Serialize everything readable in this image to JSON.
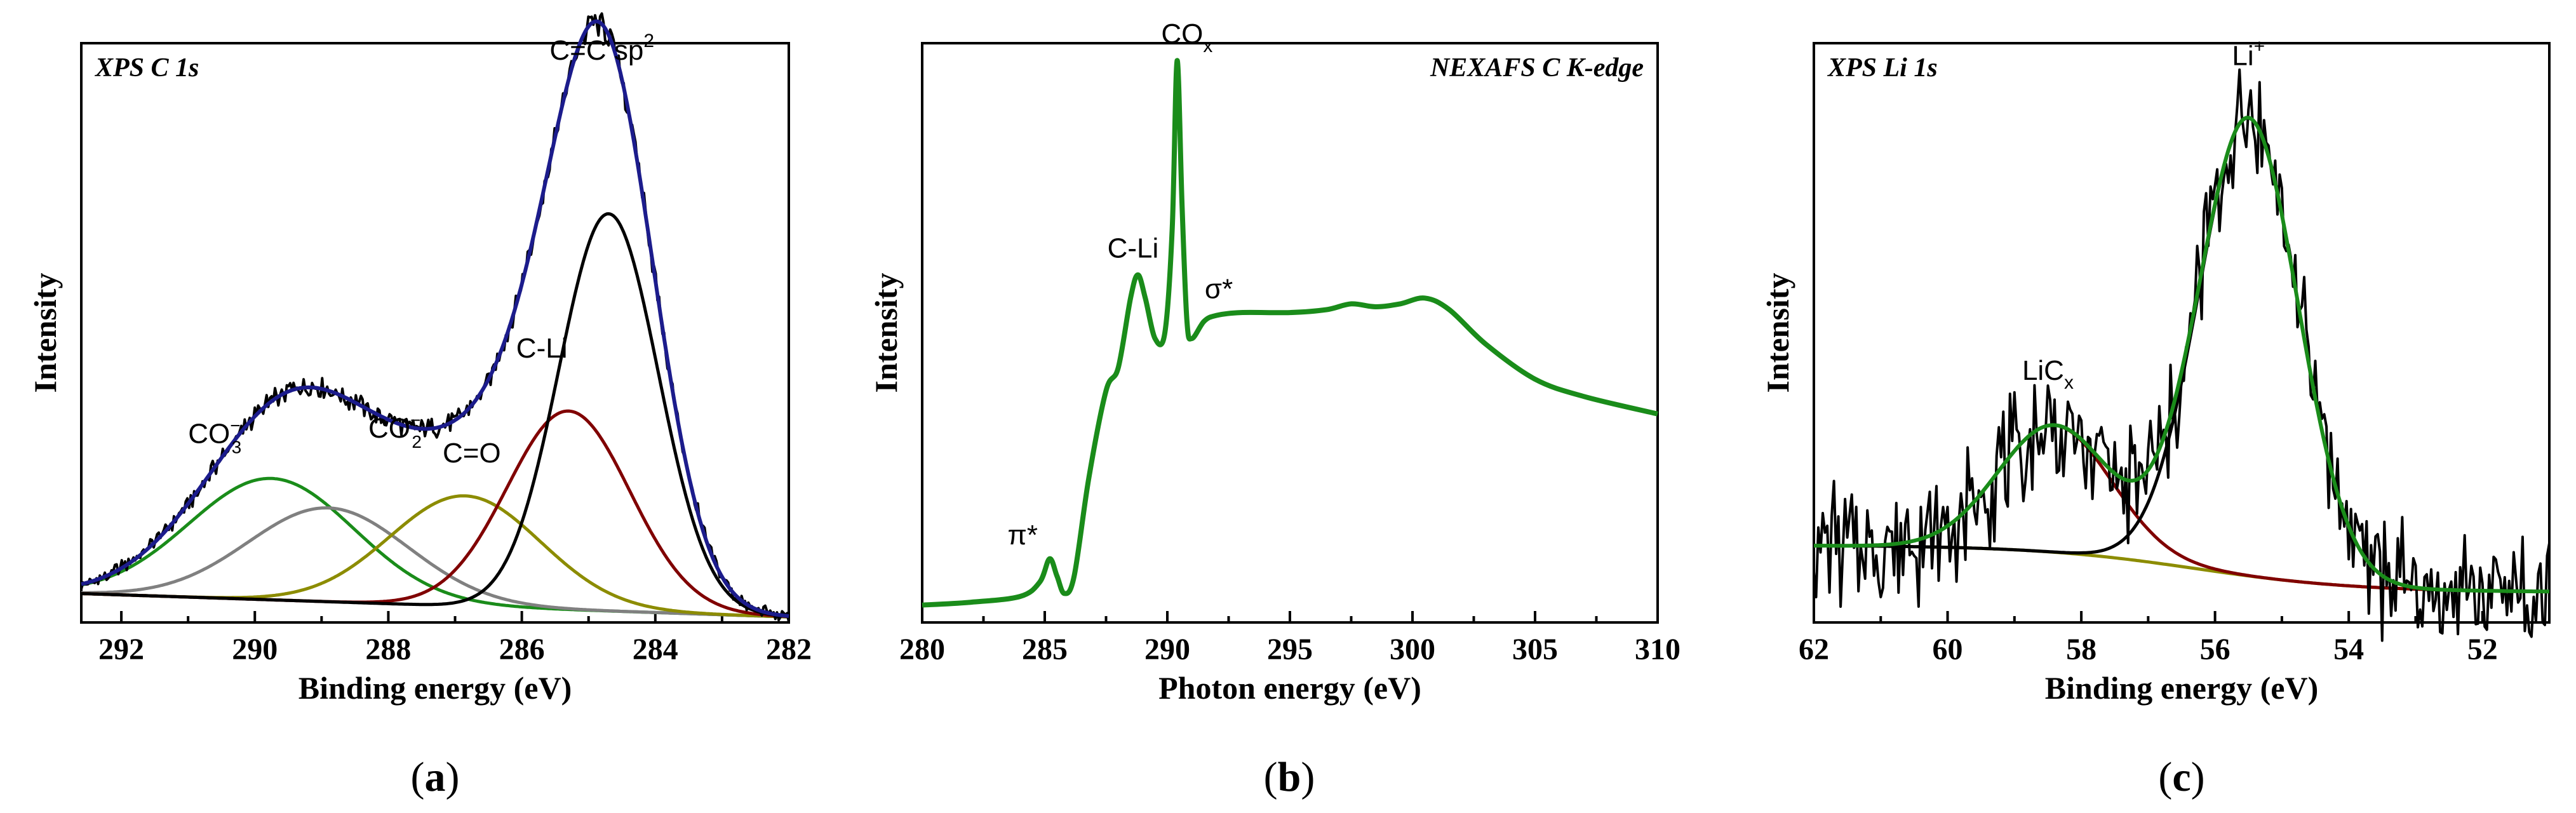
{
  "chart_data": [
    {
      "type": "line",
      "panel": "a",
      "panel_label": "(a)",
      "title": "XPS C 1s",
      "xlabel": "Binding energy (eV)",
      "ylabel": "Intensity",
      "x_reversed": true,
      "xlim": [
        292.6,
        282.0
      ],
      "ylim": [
        0,
        1.05
      ],
      "xticks": [
        292,
        290,
        288,
        286,
        284,
        282
      ],
      "background": 0.0,
      "components": [
        {
          "name": "CO3",
          "center": 289.75,
          "width": 1.75,
          "height": 0.22,
          "color": "#1a8c1a"
        },
        {
          "name": "CO2",
          "center": 288.9,
          "width": 1.7,
          "height": 0.17,
          "color": "#808080"
        },
        {
          "name": "C=O",
          "center": 286.85,
          "width": 1.6,
          "height": 0.2,
          "color": "#8c8c00"
        },
        {
          "name": "C-Li",
          "center": 285.3,
          "width": 1.3,
          "height": 0.36,
          "color": "#800000"
        },
        {
          "name": "C=C sp2",
          "center": 284.7,
          "width": 1.05,
          "height": 0.72,
          "color": "#000000"
        }
      ],
      "envelope_color": "#1c1c8c",
      "annotations": [
        {
          "label": "CO",
          "sub": "3",
          "sup": "−",
          "x": 290.6,
          "y": 0.325
        },
        {
          "label": "CO",
          "sub": "2",
          "sup": "−",
          "x": 287.9,
          "y": 0.335
        },
        {
          "label": "C=O",
          "x": 286.75,
          "y": 0.29
        },
        {
          "label": "C-Li",
          "x": 285.7,
          "y": 0.48
        },
        {
          "label": "C=C sp",
          "sup": "2",
          "x": 284.8,
          "y": 1.02
        }
      ]
    },
    {
      "type": "line",
      "panel": "b",
      "panel_label": "(b)",
      "title": "NEXAFS C K-edge",
      "xlabel": "Photon energy (eV)",
      "ylabel": "Intensity",
      "xlim": [
        280,
        310
      ],
      "ylim": [
        0,
        1.0
      ],
      "xticks": [
        280,
        285,
        290,
        295,
        300,
        305,
        310
      ],
      "line_color": "#1a8c1a",
      "spectrum": {
        "x": [
          280,
          282,
          284,
          284.8,
          285.2,
          285.5,
          285.8,
          286.2,
          286.8,
          287.5,
          288.0,
          288.5,
          288.8,
          289.1,
          289.5,
          289.9,
          290.2,
          290.4,
          290.6,
          290.8,
          291.0,
          291.5,
          292.0,
          293.0,
          295.0,
          296.5,
          297.5,
          298.5,
          299.5,
          300.5,
          301.5,
          303.0,
          305.0,
          307.0,
          310.0
        ],
        "y": [
          0.03,
          0.035,
          0.045,
          0.07,
          0.11,
          0.08,
          0.05,
          0.08,
          0.25,
          0.4,
          0.44,
          0.56,
          0.6,
          0.56,
          0.49,
          0.5,
          0.68,
          0.97,
          0.72,
          0.52,
          0.49,
          0.52,
          0.53,
          0.535,
          0.535,
          0.54,
          0.55,
          0.545,
          0.55,
          0.56,
          0.54,
          0.48,
          0.42,
          0.39,
          0.36
        ]
      },
      "annotations": [
        {
          "label": "π*",
          "x": 284.1,
          "y": 0.135
        },
        {
          "label": "C-Li",
          "x": 288.6,
          "y": 0.63
        },
        {
          "label": "CO",
          "sub": "x",
          "x": 290.8,
          "y": 1.0
        },
        {
          "label": "σ*",
          "x": 292.1,
          "y": 0.56
        }
      ]
    },
    {
      "type": "line",
      "panel": "c",
      "panel_label": "(c)",
      "title": "XPS Li 1s",
      "xlabel": "Binding energy (eV)",
      "ylabel": "Intensity",
      "x_reversed": true,
      "xlim": [
        62.0,
        51.0
      ],
      "ylim": [
        0,
        1.05
      ],
      "xticks": [
        62,
        60,
        58,
        56,
        54,
        52
      ],
      "background": {
        "start": 0.14,
        "end": 0.055
      },
      "components": [
        {
          "name": "LiCx",
          "center": 58.4,
          "width": 1.2,
          "height": 0.23,
          "color": "#800000"
        },
        {
          "name": "Li+",
          "center": 55.5,
          "width": 1.05,
          "height": 0.83,
          "color": "#000000"
        }
      ],
      "fit_color": "#1a8c1a",
      "background_color": "#8c8c00",
      "annotations": [
        {
          "label": "LiC",
          "sub": "x",
          "x": 58.5,
          "y": 0.44
        },
        {
          "label": "Li",
          "sup": "+",
          "x": 55.5,
          "y": 1.01
        }
      ]
    }
  ]
}
